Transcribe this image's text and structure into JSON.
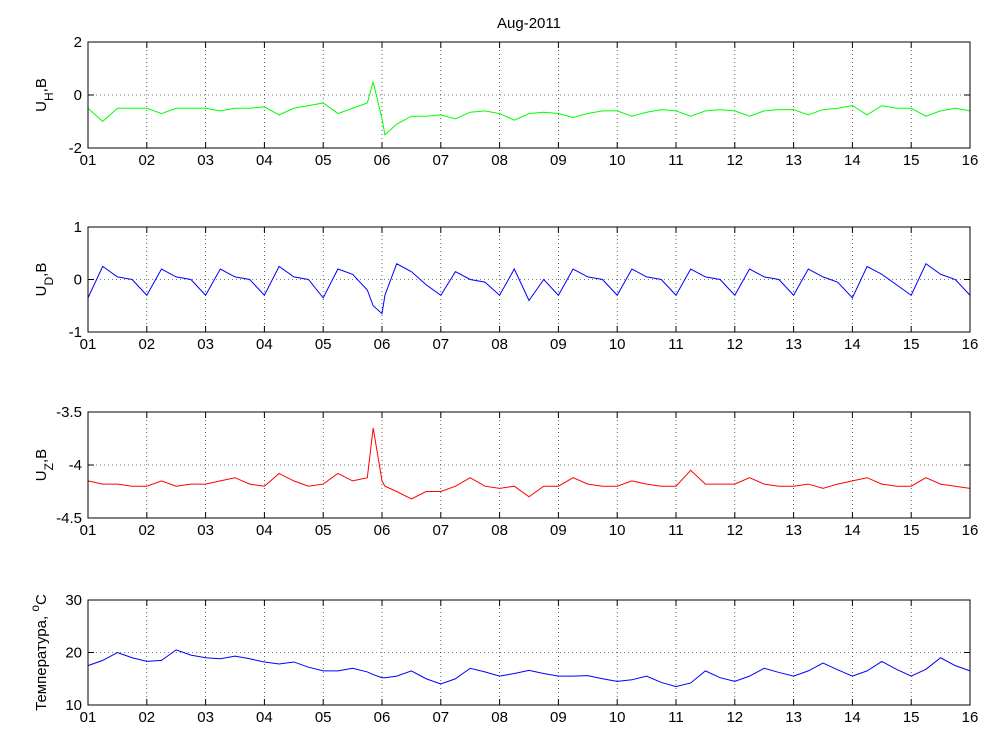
{
  "chart_data": [
    {
      "type": "line",
      "title": "Aug-2011",
      "ylabel": {
        "text": "U",
        "sub": "H",
        "after": ",B"
      },
      "xlim": [
        1,
        16
      ],
      "xticks": [
        {
          "value": 1,
          "label": "01"
        },
        {
          "value": 2,
          "label": "02"
        },
        {
          "value": 3,
          "label": "03"
        },
        {
          "value": 4,
          "label": "04"
        },
        {
          "value": 5,
          "label": "05"
        },
        {
          "value": 6,
          "label": "06"
        },
        {
          "value": 7,
          "label": "07"
        },
        {
          "value": 8,
          "label": "08"
        },
        {
          "value": 9,
          "label": "09"
        },
        {
          "value": 10,
          "label": "10"
        },
        {
          "value": 11,
          "label": "11"
        },
        {
          "value": 12,
          "label": "12"
        },
        {
          "value": 13,
          "label": "13"
        },
        {
          "value": 14,
          "label": "14"
        },
        {
          "value": 15,
          "label": "15"
        },
        {
          "value": 16,
          "label": "16"
        }
      ],
      "ylim": [
        -2,
        2
      ],
      "yticks": [
        -2,
        0,
        2
      ],
      "grid": true,
      "color": "#00ff00",
      "x": [
        1,
        1.25,
        1.5,
        1.75,
        2,
        2.25,
        2.5,
        2.75,
        3,
        3.25,
        3.5,
        3.75,
        4,
        4.25,
        4.5,
        4.75,
        5,
        5.25,
        5.5,
        5.75,
        5.85,
        6,
        6.05,
        6.25,
        6.5,
        6.75,
        7,
        7.25,
        7.5,
        7.75,
        8,
        8.25,
        8.5,
        8.75,
        9,
        9.25,
        9.5,
        9.75,
        10,
        10.25,
        10.5,
        10.75,
        11,
        11.25,
        11.5,
        11.75,
        12,
        12.25,
        12.5,
        12.75,
        13,
        13.25,
        13.5,
        13.75,
        14,
        14.25,
        14.5,
        14.75,
        15,
        15.25,
        15.5,
        15.75,
        16
      ],
      "values": [
        -0.5,
        -1.0,
        -0.5,
        -0.5,
        -0.5,
        -0.7,
        -0.5,
        -0.5,
        -0.5,
        -0.6,
        -0.5,
        -0.5,
        -0.45,
        -0.75,
        -0.5,
        -0.4,
        -0.3,
        -0.7,
        -0.5,
        -0.3,
        0.5,
        -0.9,
        -1.5,
        -1.1,
        -0.8,
        -0.8,
        -0.75,
        -0.9,
        -0.65,
        -0.6,
        -0.7,
        -0.95,
        -0.7,
        -0.65,
        -0.7,
        -0.85,
        -0.7,
        -0.6,
        -0.6,
        -0.8,
        -0.65,
        -0.55,
        -0.6,
        -0.8,
        -0.6,
        -0.55,
        -0.6,
        -0.8,
        -0.6,
        -0.55,
        -0.55,
        -0.75,
        -0.55,
        -0.5,
        -0.4,
        -0.75,
        -0.4,
        -0.5,
        -0.5,
        -0.8,
        -0.6,
        -0.5,
        -0.6
      ]
    },
    {
      "type": "line",
      "ylabel": {
        "text": "U",
        "sub": "D",
        "after": ",B"
      },
      "xlim": [
        1,
        16
      ],
      "xticks": [
        {
          "value": 1,
          "label": "01"
        },
        {
          "value": 2,
          "label": "02"
        },
        {
          "value": 3,
          "label": "03"
        },
        {
          "value": 4,
          "label": "04"
        },
        {
          "value": 5,
          "label": "05"
        },
        {
          "value": 6,
          "label": "06"
        },
        {
          "value": 7,
          "label": "07"
        },
        {
          "value": 8,
          "label": "08"
        },
        {
          "value": 9,
          "label": "09"
        },
        {
          "value": 10,
          "label": "10"
        },
        {
          "value": 11,
          "label": "11"
        },
        {
          "value": 12,
          "label": "12"
        },
        {
          "value": 13,
          "label": "13"
        },
        {
          "value": 14,
          "label": "14"
        },
        {
          "value": 15,
          "label": "15"
        },
        {
          "value": 16,
          "label": "16"
        }
      ],
      "ylim": [
        -1,
        1
      ],
      "yticks": [
        -1,
        0,
        1
      ],
      "grid": true,
      "color": "#0000ff",
      "x": [
        1,
        1.25,
        1.5,
        1.75,
        2,
        2.25,
        2.5,
        2.75,
        3,
        3.25,
        3.5,
        3.75,
        4,
        4.25,
        4.5,
        4.75,
        5,
        5.25,
        5.5,
        5.75,
        5.85,
        6,
        6.05,
        6.25,
        6.5,
        6.75,
        7,
        7.25,
        7.5,
        7.75,
        8,
        8.25,
        8.5,
        8.75,
        9,
        9.25,
        9.5,
        9.75,
        10,
        10.25,
        10.5,
        10.75,
        11,
        11.25,
        11.5,
        11.75,
        12,
        12.25,
        12.5,
        12.75,
        13,
        13.25,
        13.5,
        13.75,
        14,
        14.25,
        14.5,
        14.75,
        15,
        15.25,
        15.5,
        15.75,
        16
      ],
      "values": [
        -0.35,
        0.25,
        0.05,
        0,
        -0.3,
        0.2,
        0.05,
        0,
        -0.3,
        0.2,
        0.05,
        0,
        -0.3,
        0.25,
        0.05,
        0,
        -0.35,
        0.2,
        0.1,
        -0.2,
        -0.5,
        -0.65,
        -0.3,
        0.3,
        0.15,
        -0.1,
        -0.3,
        0.15,
        0,
        -0.05,
        -0.3,
        0.2,
        -0.4,
        0,
        -0.3,
        0.2,
        0.05,
        0,
        -0.3,
        0.2,
        0.05,
        0,
        -0.3,
        0.2,
        0.05,
        0,
        -0.3,
        0.2,
        0.05,
        0,
        -0.3,
        0.2,
        0.05,
        -0.05,
        -0.35,
        0.25,
        0.1,
        -0.1,
        -0.3,
        0.3,
        0.1,
        0,
        -0.3
      ]
    },
    {
      "type": "line",
      "ylabel": {
        "text": "U",
        "sub": "Z",
        "after": ",B"
      },
      "xlim": [
        1,
        16
      ],
      "xticks": [
        {
          "value": 1,
          "label": "01"
        },
        {
          "value": 2,
          "label": "02"
        },
        {
          "value": 3,
          "label": "03"
        },
        {
          "value": 4,
          "label": "04"
        },
        {
          "value": 5,
          "label": "05"
        },
        {
          "value": 6,
          "label": "06"
        },
        {
          "value": 7,
          "label": "07"
        },
        {
          "value": 8,
          "label": "08"
        },
        {
          "value": 9,
          "label": "09"
        },
        {
          "value": 10,
          "label": "10"
        },
        {
          "value": 11,
          "label": "11"
        },
        {
          "value": 12,
          "label": "12"
        },
        {
          "value": 13,
          "label": "13"
        },
        {
          "value": 14,
          "label": "14"
        },
        {
          "value": 15,
          "label": "15"
        },
        {
          "value": 16,
          "label": "16"
        }
      ],
      "ylim": [
        -4.5,
        -3.5
      ],
      "yticks": [
        -4.5,
        -4,
        -3.5
      ],
      "grid": true,
      "color": "#ff0000",
      "x": [
        1,
        1.25,
        1.5,
        1.75,
        2,
        2.25,
        2.5,
        2.75,
        3,
        3.25,
        3.5,
        3.75,
        4,
        4.25,
        4.5,
        4.75,
        5,
        5.25,
        5.5,
        5.75,
        5.85,
        6,
        6.05,
        6.25,
        6.5,
        6.75,
        7,
        7.25,
        7.5,
        7.75,
        8,
        8.25,
        8.5,
        8.75,
        9,
        9.25,
        9.5,
        9.75,
        10,
        10.25,
        10.5,
        10.75,
        11,
        11.25,
        11.5,
        11.75,
        12,
        12.25,
        12.5,
        12.75,
        13,
        13.25,
        13.5,
        13.75,
        14,
        14.25,
        14.5,
        14.75,
        15,
        15.25,
        15.5,
        15.75,
        16
      ],
      "values": [
        -4.15,
        -4.18,
        -4.18,
        -4.2,
        -4.2,
        -4.15,
        -4.2,
        -4.18,
        -4.18,
        -4.15,
        -4.12,
        -4.18,
        -4.2,
        -4.08,
        -4.15,
        -4.2,
        -4.18,
        -4.08,
        -4.15,
        -4.12,
        -3.65,
        -4.15,
        -4.2,
        -4.25,
        -4.32,
        -4.25,
        -4.25,
        -4.2,
        -4.12,
        -4.2,
        -4.22,
        -4.2,
        -4.3,
        -4.2,
        -4.2,
        -4.12,
        -4.18,
        -4.2,
        -4.2,
        -4.15,
        -4.18,
        -4.2,
        -4.2,
        -4.05,
        -4.18,
        -4.18,
        -4.18,
        -4.12,
        -4.18,
        -4.2,
        -4.2,
        -4.18,
        -4.22,
        -4.18,
        -4.15,
        -4.12,
        -4.18,
        -4.2,
        -4.2,
        -4.12,
        -4.18,
        -4.2,
        -4.22
      ]
    },
    {
      "type": "line",
      "ylabel": {
        "text": "Температура, ",
        "sup": "o",
        "after": "C"
      },
      "xlim": [
        1,
        16
      ],
      "xticks": [
        {
          "value": 1,
          "label": "01"
        },
        {
          "value": 2,
          "label": "02"
        },
        {
          "value": 3,
          "label": "03"
        },
        {
          "value": 4,
          "label": "04"
        },
        {
          "value": 5,
          "label": "05"
        },
        {
          "value": 6,
          "label": "06"
        },
        {
          "value": 7,
          "label": "07"
        },
        {
          "value": 8,
          "label": "08"
        },
        {
          "value": 9,
          "label": "09"
        },
        {
          "value": 10,
          "label": "10"
        },
        {
          "value": 11,
          "label": "11"
        },
        {
          "value": 12,
          "label": "12"
        },
        {
          "value": 13,
          "label": "13"
        },
        {
          "value": 14,
          "label": "14"
        },
        {
          "value": 15,
          "label": "15"
        },
        {
          "value": 16,
          "label": "16"
        }
      ],
      "ylim": [
        10,
        30
      ],
      "yticks": [
        10,
        20,
        30
      ],
      "grid": true,
      "color": "#0000ff",
      "x": [
        1,
        1.25,
        1.5,
        1.75,
        2,
        2.25,
        2.5,
        2.75,
        3,
        3.25,
        3.5,
        3.75,
        4,
        4.25,
        4.5,
        4.75,
        5,
        5.25,
        5.5,
        5.75,
        5.85,
        6,
        6.05,
        6.25,
        6.5,
        6.75,
        7,
        7.25,
        7.5,
        7.75,
        8,
        8.25,
        8.5,
        8.75,
        9,
        9.25,
        9.5,
        9.75,
        10,
        10.25,
        10.5,
        10.75,
        11,
        11.25,
        11.5,
        11.75,
        12,
        12.25,
        12.5,
        12.75,
        13,
        13.25,
        13.5,
        13.75,
        14,
        14.25,
        14.5,
        14.75,
        15,
        15.25,
        15.5,
        15.75,
        16
      ],
      "values": [
        17.5,
        18.5,
        20,
        19,
        18.3,
        18.5,
        20.5,
        19.5,
        19,
        18.8,
        19.3,
        18.8,
        18.2,
        17.8,
        18.2,
        17.2,
        16.5,
        16.5,
        17,
        16.3,
        15.8,
        15.2,
        15.2,
        15.5,
        16.5,
        15,
        14,
        15,
        17,
        16.3,
        15.5,
        16,
        16.6,
        16,
        15.5,
        15.5,
        15.6,
        15,
        14.5,
        14.8,
        15.5,
        14.3,
        13.5,
        14.2,
        16.5,
        15.2,
        14.5,
        15.5,
        17,
        16.2,
        15.5,
        16.5,
        18,
        16.7,
        15.5,
        16.5,
        18.3,
        16.8,
        15.5,
        16.8,
        19,
        17.5,
        16.5
      ]
    }
  ]
}
